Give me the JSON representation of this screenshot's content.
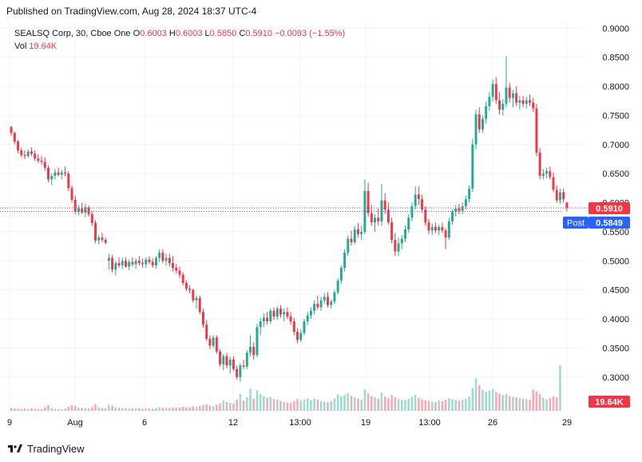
{
  "header": {
    "published": "Published on TradingView.com, Aug 28, 2024 18:37 UTC-4"
  },
  "legend": {
    "symbol": "SEALSQ Corp, 30, Cboe One",
    "o_label": "O",
    "o_value": "0.6003",
    "h_label": "H",
    "h_value": "0.6003",
    "l_label": "L",
    "l_value": "0.5850",
    "c_label": "C",
    "c_value": "0.5910",
    "change": "−0.0093 (−1.55%)",
    "vol_label": "Vol",
    "vol_value": "19.64K"
  },
  "badges": {
    "last_price": "0.5910",
    "post_label": "Post",
    "post_price": "0.5849",
    "volume": "19.64K"
  },
  "footer": {
    "brand": "TradingView"
  },
  "colors": {
    "up": "#22ab94",
    "down": "#f23645",
    "post": "#2962ff",
    "grid": "#f0f3fa",
    "text": "#131722"
  },
  "chart_data": {
    "type": "candlestick",
    "y_axis": {
      "min": 0.275,
      "max": 0.91,
      "ticks": [
        "0.9000",
        "0.8500",
        "0.8000",
        "0.7500",
        "0.7000",
        "0.6500",
        "0.6000",
        "0.5500",
        "0.5000",
        "0.4500",
        "0.4000",
        "0.3500",
        "0.3000"
      ]
    },
    "x_axis_labels": [
      "9",
      "Aug",
      "6",
      "12",
      "13:00",
      "19",
      "13:00",
      "26",
      "29"
    ],
    "grid": true,
    "last_close": 0.591,
    "post_price": 0.5849,
    "ohlc": [
      [
        0.73,
        0.732,
        0.715,
        0.72
      ],
      [
        0.72,
        0.722,
        0.7,
        0.705
      ],
      [
        0.705,
        0.708,
        0.685,
        0.69
      ],
      [
        0.69,
        0.695,
        0.678,
        0.682
      ],
      [
        0.682,
        0.69,
        0.675,
        0.68
      ],
      [
        0.68,
        0.692,
        0.678,
        0.688
      ],
      [
        0.688,
        0.695,
        0.68,
        0.684
      ],
      [
        0.684,
        0.69,
        0.672,
        0.676
      ],
      [
        0.676,
        0.683,
        0.668,
        0.672
      ],
      [
        0.672,
        0.68,
        0.665,
        0.67
      ],
      [
        0.67,
        0.678,
        0.655,
        0.66
      ],
      [
        0.66,
        0.664,
        0.635,
        0.64
      ],
      [
        0.64,
        0.65,
        0.63,
        0.646
      ],
      [
        0.646,
        0.658,
        0.64,
        0.652
      ],
      [
        0.652,
        0.66,
        0.645,
        0.648
      ],
      [
        0.648,
        0.656,
        0.64,
        0.652
      ],
      [
        0.652,
        0.662,
        0.645,
        0.65
      ],
      [
        0.65,
        0.654,
        0.62,
        0.625
      ],
      [
        0.625,
        0.63,
        0.6,
        0.605
      ],
      [
        0.605,
        0.612,
        0.58,
        0.585
      ],
      [
        0.585,
        0.596,
        0.578,
        0.59
      ],
      [
        0.59,
        0.6,
        0.58,
        0.583
      ],
      [
        0.583,
        0.598,
        0.575,
        0.592
      ],
      [
        0.592,
        0.595,
        0.576,
        0.58
      ],
      [
        0.58,
        0.585,
        0.56,
        0.565
      ],
      [
        0.565,
        0.57,
        0.53,
        0.535
      ],
      [
        0.535,
        0.545,
        0.528,
        0.54
      ],
      [
        0.54,
        0.548,
        0.532,
        0.536
      ],
      [
        0.536,
        0.54,
        0.528,
        0.531
      ],
      [
        0.5,
        0.512,
        0.485,
        0.505
      ],
      [
        0.505,
        0.51,
        0.48,
        0.485
      ],
      [
        0.485,
        0.5,
        0.475,
        0.496
      ],
      [
        0.496,
        0.506,
        0.488,
        0.492
      ],
      [
        0.492,
        0.505,
        0.486,
        0.5
      ],
      [
        0.5,
        0.506,
        0.488,
        0.49
      ],
      [
        0.49,
        0.502,
        0.484,
        0.498
      ],
      [
        0.498,
        0.506,
        0.49,
        0.494
      ],
      [
        0.494,
        0.504,
        0.486,
        0.5
      ],
      [
        0.5,
        0.508,
        0.492,
        0.496
      ],
      [
        0.496,
        0.504,
        0.488,
        0.494
      ],
      [
        0.494,
        0.506,
        0.488,
        0.502
      ],
      [
        0.502,
        0.508,
        0.494,
        0.498
      ],
      [
        0.498,
        0.504,
        0.488,
        0.492
      ],
      [
        0.492,
        0.508,
        0.486,
        0.505
      ],
      [
        0.505,
        0.52,
        0.498,
        0.514
      ],
      [
        0.514,
        0.52,
        0.496,
        0.5
      ],
      [
        0.5,
        0.512,
        0.492,
        0.505
      ],
      [
        0.505,
        0.512,
        0.49,
        0.496
      ],
      [
        0.496,
        0.508,
        0.482,
        0.488
      ],
      [
        0.488,
        0.495,
        0.478,
        0.483
      ],
      [
        0.483,
        0.49,
        0.47,
        0.476
      ],
      [
        0.476,
        0.48,
        0.458,
        0.462
      ],
      [
        0.462,
        0.466,
        0.448,
        0.452
      ],
      [
        0.452,
        0.458,
        0.444,
        0.45
      ],
      [
        0.45,
        0.452,
        0.428,
        0.432
      ],
      [
        0.432,
        0.44,
        0.418,
        0.436
      ],
      [
        0.436,
        0.44,
        0.408,
        0.412
      ],
      [
        0.412,
        0.418,
        0.385,
        0.39
      ],
      [
        0.39,
        0.398,
        0.362,
        0.366
      ],
      [
        0.366,
        0.372,
        0.348,
        0.354
      ],
      [
        0.354,
        0.372,
        0.35,
        0.368
      ],
      [
        0.368,
        0.372,
        0.34,
        0.344
      ],
      [
        0.344,
        0.348,
        0.318,
        0.322
      ],
      [
        0.322,
        0.34,
        0.312,
        0.336
      ],
      [
        0.336,
        0.342,
        0.315,
        0.32
      ],
      [
        0.32,
        0.335,
        0.306,
        0.33
      ],
      [
        0.33,
        0.336,
        0.31,
        0.314
      ],
      [
        0.314,
        0.32,
        0.296,
        0.3
      ],
      [
        0.3,
        0.324,
        0.292,
        0.32
      ],
      [
        0.32,
        0.33,
        0.314,
        0.318
      ],
      [
        0.318,
        0.346,
        0.314,
        0.342
      ],
      [
        0.342,
        0.372,
        0.336,
        0.352
      ],
      [
        0.352,
        0.36,
        0.33,
        0.338
      ],
      [
        0.338,
        0.392,
        0.334,
        0.386
      ],
      [
        0.386,
        0.402,
        0.372,
        0.396
      ],
      [
        0.396,
        0.41,
        0.386,
        0.402
      ],
      [
        0.402,
        0.412,
        0.39,
        0.396
      ],
      [
        0.396,
        0.418,
        0.392,
        0.414
      ],
      [
        0.414,
        0.42,
        0.398,
        0.404
      ],
      [
        0.404,
        0.422,
        0.398,
        0.418
      ],
      [
        0.418,
        0.424,
        0.402,
        0.408
      ],
      [
        0.408,
        0.418,
        0.396,
        0.412
      ],
      [
        0.412,
        0.42,
        0.4,
        0.404
      ],
      [
        0.404,
        0.412,
        0.39,
        0.396
      ],
      [
        0.396,
        0.402,
        0.372,
        0.378
      ],
      [
        0.378,
        0.384,
        0.358,
        0.364
      ],
      [
        0.364,
        0.382,
        0.36,
        0.376
      ],
      [
        0.376,
        0.4,
        0.372,
        0.396
      ],
      [
        0.396,
        0.412,
        0.39,
        0.406
      ],
      [
        0.406,
        0.42,
        0.4,
        0.414
      ],
      [
        0.414,
        0.432,
        0.408,
        0.426
      ],
      [
        0.426,
        0.44,
        0.416,
        0.42
      ],
      [
        0.42,
        0.438,
        0.414,
        0.432
      ],
      [
        0.432,
        0.444,
        0.426,
        0.438
      ],
      [
        0.438,
        0.446,
        0.42,
        0.424
      ],
      [
        0.424,
        0.434,
        0.418,
        0.43
      ],
      [
        0.43,
        0.45,
        0.426,
        0.446
      ],
      [
        0.446,
        0.47,
        0.442,
        0.466
      ],
      [
        0.466,
        0.492,
        0.46,
        0.488
      ],
      [
        0.488,
        0.52,
        0.482,
        0.514
      ],
      [
        0.514,
        0.544,
        0.508,
        0.538
      ],
      [
        0.538,
        0.552,
        0.526,
        0.532
      ],
      [
        0.532,
        0.56,
        0.528,
        0.554
      ],
      [
        0.554,
        0.565,
        0.54,
        0.546
      ],
      [
        0.546,
        0.56,
        0.536,
        0.55
      ],
      [
        0.55,
        0.64,
        0.546,
        0.62
      ],
      [
        0.62,
        0.634,
        0.576,
        0.582
      ],
      [
        0.582,
        0.596,
        0.56,
        0.566
      ],
      [
        0.566,
        0.58,
        0.55,
        0.574
      ],
      [
        0.574,
        0.59,
        0.56,
        0.568
      ],
      [
        0.568,
        0.632,
        0.56,
        0.604
      ],
      [
        0.604,
        0.616,
        0.58,
        0.588
      ],
      [
        0.588,
        0.6,
        0.562,
        0.566
      ],
      [
        0.566,
        0.574,
        0.53,
        0.536
      ],
      [
        0.536,
        0.548,
        0.508,
        0.516
      ],
      [
        0.516,
        0.54,
        0.508,
        0.53
      ],
      [
        0.53,
        0.544,
        0.52,
        0.538
      ],
      [
        0.538,
        0.56,
        0.532,
        0.554
      ],
      [
        0.554,
        0.58,
        0.548,
        0.574
      ],
      [
        0.574,
        0.6,
        0.568,
        0.594
      ],
      [
        0.594,
        0.628,
        0.588,
        0.614
      ],
      [
        0.614,
        0.628,
        0.596,
        0.606
      ],
      [
        0.606,
        0.614,
        0.582,
        0.588
      ],
      [
        0.588,
        0.594,
        0.56,
        0.566
      ],
      [
        0.566,
        0.572,
        0.546,
        0.552
      ],
      [
        0.552,
        0.564,
        0.544,
        0.558
      ],
      [
        0.558,
        0.566,
        0.548,
        0.552
      ],
      [
        0.552,
        0.562,
        0.544,
        0.558
      ],
      [
        0.558,
        0.566,
        0.548,
        0.552
      ],
      [
        0.552,
        0.556,
        0.52,
        0.54
      ],
      [
        0.54,
        0.574,
        0.536,
        0.568
      ],
      [
        0.568,
        0.588,
        0.562,
        0.584
      ],
      [
        0.584,
        0.596,
        0.576,
        0.59
      ],
      [
        0.59,
        0.598,
        0.58,
        0.586
      ],
      [
        0.586,
        0.6,
        0.58,
        0.594
      ],
      [
        0.594,
        0.612,
        0.588,
        0.606
      ],
      [
        0.606,
        0.63,
        0.6,
        0.624
      ],
      [
        0.624,
        0.71,
        0.618,
        0.7
      ],
      [
        0.7,
        0.76,
        0.692,
        0.752
      ],
      [
        0.752,
        0.764,
        0.72,
        0.726
      ],
      [
        0.726,
        0.75,
        0.72,
        0.744
      ],
      [
        0.744,
        0.774,
        0.736,
        0.766
      ],
      [
        0.766,
        0.79,
        0.758,
        0.782
      ],
      [
        0.782,
        0.812,
        0.774,
        0.804
      ],
      [
        0.804,
        0.816,
        0.77,
        0.776
      ],
      [
        0.776,
        0.79,
        0.752,
        0.76
      ],
      [
        0.76,
        0.778,
        0.75,
        0.77
      ],
      [
        0.77,
        0.852,
        0.764,
        0.798
      ],
      [
        0.798,
        0.806,
        0.772,
        0.78
      ],
      [
        0.78,
        0.794,
        0.764,
        0.788
      ],
      [
        0.788,
        0.8,
        0.766,
        0.772
      ],
      [
        0.772,
        0.784,
        0.76,
        0.776
      ],
      [
        0.776,
        0.784,
        0.764,
        0.77
      ],
      [
        0.77,
        0.782,
        0.762,
        0.776
      ],
      [
        0.776,
        0.786,
        0.766,
        0.772
      ],
      [
        0.772,
        0.78,
        0.756,
        0.762
      ],
      [
        0.762,
        0.77,
        0.68,
        0.686
      ],
      [
        0.686,
        0.694,
        0.64,
        0.646
      ],
      [
        0.646,
        0.658,
        0.64,
        0.65
      ],
      [
        0.65,
        0.66,
        0.642,
        0.654
      ],
      [
        0.654,
        0.662,
        0.64,
        0.644
      ],
      [
        0.644,
        0.652,
        0.618,
        0.622
      ],
      [
        0.622,
        0.63,
        0.6,
        0.604
      ],
      [
        0.604,
        0.624,
        0.598,
        0.618
      ],
      [
        0.618,
        0.624,
        0.6,
        0.606
      ],
      [
        0.6003,
        0.6003,
        0.585,
        0.591
      ]
    ],
    "volume_max": 35000,
    "volume": [
      1200,
      1100,
      900,
      800,
      1000,
      900,
      1100,
      900,
      800,
      700,
      1500,
      2400,
      1200,
      900,
      800,
      700,
      900,
      1800,
      2500,
      2200,
      1400,
      1200,
      1300,
      1100,
      1600,
      2800,
      1500,
      1200,
      1100,
      2600,
      2200,
      1500,
      1300,
      1200,
      1100,
      1000,
      1200,
      1100,
      1000,
      900,
      1100,
      1000,
      900,
      1200,
      1500,
      1400,
      1300,
      1200,
      1400,
      1300,
      1500,
      1700,
      1600,
      1500,
      1900,
      1700,
      2100,
      2500,
      2800,
      2300,
      2000,
      2600,
      3200,
      4500,
      3800,
      3400,
      3000,
      4800,
      7200,
      4400,
      5800,
      9500,
      5200,
      8800,
      7200,
      6400,
      5600,
      5900,
      5100,
      4800,
      4200,
      3900,
      3600,
      3400,
      4200,
      5100,
      4400,
      4900,
      5300,
      4600,
      5200,
      4800,
      4200,
      3900,
      3700,
      4100,
      5300,
      7000,
      6200,
      6800,
      7600,
      6400,
      5800,
      5200,
      4800,
      9200,
      7600,
      6400,
      5800,
      5200,
      7800,
      6200,
      5400,
      6800,
      5800,
      5200,
      4800,
      4600,
      5200,
      6000,
      6800,
      5600,
      5000,
      4600,
      4200,
      3900,
      3700,
      4400,
      4100,
      4800,
      5400,
      5000,
      4700,
      4400,
      4800,
      5200,
      6200,
      9800,
      14000,
      11000,
      9000,
      8200,
      8600,
      9400,
      8000,
      7400,
      6800,
      7200,
      6400,
      6000,
      5800,
      5400,
      5200,
      5000,
      4800,
      9200,
      8400,
      7200,
      5600,
      5000,
      5400,
      6200,
      5800,
      19640
    ]
  }
}
